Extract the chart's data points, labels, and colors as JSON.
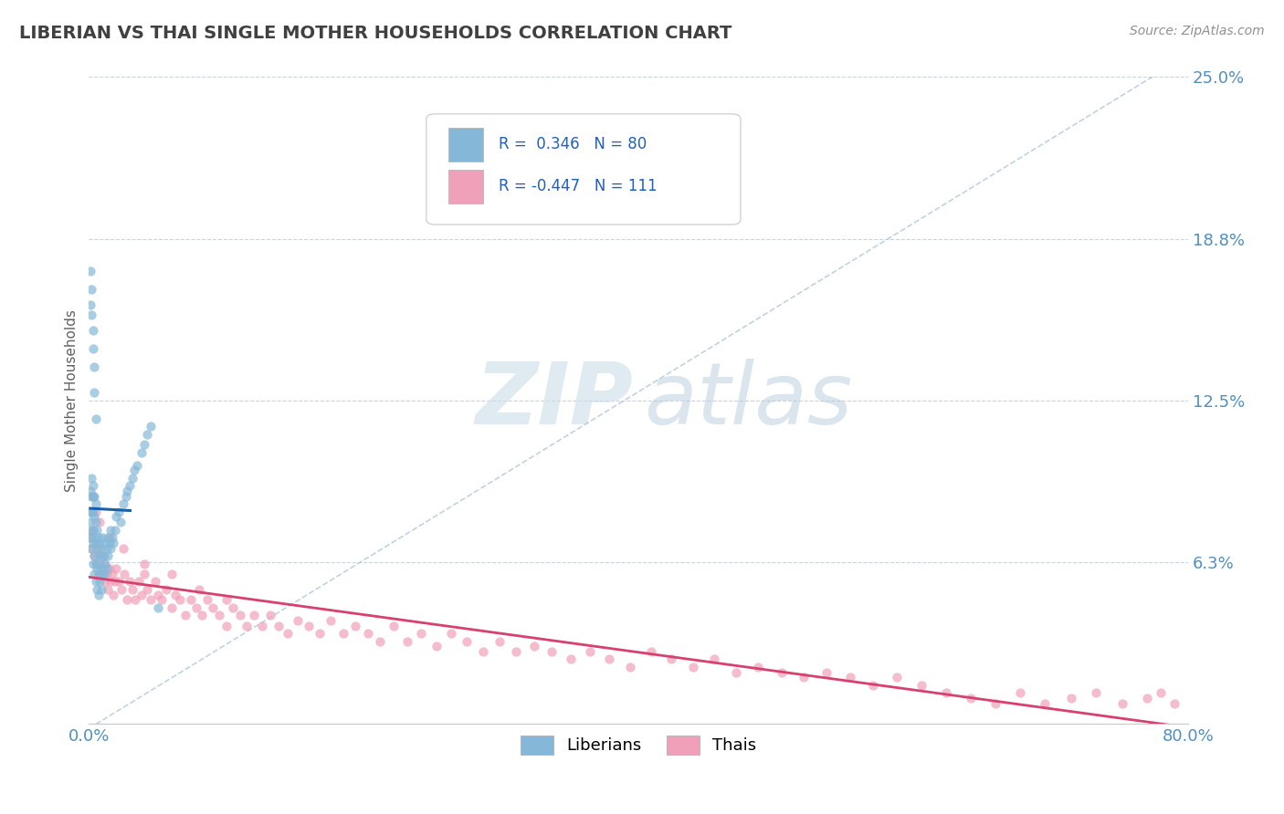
{
  "title": "LIBERIAN VS THAI SINGLE MOTHER HOUSEHOLDS CORRELATION CHART",
  "source_text": "Source: ZipAtlas.com",
  "ylabel": "Single Mother Households",
  "xlim": [
    0.0,
    0.8
  ],
  "ylim": [
    0.0,
    0.25
  ],
  "ytick_positions": [
    0.0,
    0.0625,
    0.125,
    0.1875,
    0.25
  ],
  "ytick_labels": [
    "",
    "6.3%",
    "12.5%",
    "18.8%",
    "25.0%"
  ],
  "xtick_positions": [
    0.0,
    0.8
  ],
  "xtick_labels": [
    "0.0%",
    "80.0%"
  ],
  "liberian_color": "#85b8d8",
  "thai_color": "#f0a0b8",
  "liberian_line_color": "#1a5fa8",
  "thai_line_color": "#d84070",
  "diag_line_color": "#b0c8dc",
  "liberian_R": 0.346,
  "liberian_N": 80,
  "thai_R": -0.447,
  "thai_N": 111,
  "grid_color": "#c8d4e0",
  "title_color": "#404040",
  "source_color": "#909090",
  "axis_label_color": "#606060",
  "tick_label_color": "#5090c0",
  "legend_label_1": "Liberians",
  "legend_label_2": "Thais",
  "liberian_scatter_x": [
    0.001,
    0.001,
    0.001,
    0.001,
    0.002,
    0.002,
    0.002,
    0.002,
    0.002,
    0.003,
    0.003,
    0.003,
    0.003,
    0.003,
    0.003,
    0.004,
    0.004,
    0.004,
    0.004,
    0.004,
    0.005,
    0.005,
    0.005,
    0.005,
    0.005,
    0.006,
    0.006,
    0.006,
    0.006,
    0.007,
    0.007,
    0.007,
    0.007,
    0.008,
    0.008,
    0.008,
    0.009,
    0.009,
    0.009,
    0.01,
    0.01,
    0.01,
    0.011,
    0.011,
    0.012,
    0.012,
    0.013,
    0.013,
    0.014,
    0.014,
    0.015,
    0.016,
    0.016,
    0.017,
    0.018,
    0.019,
    0.02,
    0.022,
    0.023,
    0.025,
    0.027,
    0.028,
    0.03,
    0.032,
    0.033,
    0.035,
    0.038,
    0.04,
    0.042,
    0.045,
    0.001,
    0.001,
    0.002,
    0.002,
    0.003,
    0.003,
    0.004,
    0.004,
    0.005,
    0.05
  ],
  "liberian_scatter_y": [
    0.072,
    0.078,
    0.082,
    0.09,
    0.068,
    0.075,
    0.082,
    0.088,
    0.095,
    0.062,
    0.07,
    0.075,
    0.082,
    0.088,
    0.092,
    0.058,
    0.065,
    0.072,
    0.08,
    0.088,
    0.055,
    0.062,
    0.07,
    0.078,
    0.085,
    0.052,
    0.06,
    0.068,
    0.075,
    0.05,
    0.058,
    0.065,
    0.072,
    0.055,
    0.062,
    0.07,
    0.052,
    0.06,
    0.068,
    0.058,
    0.065,
    0.072,
    0.058,
    0.065,
    0.062,
    0.07,
    0.06,
    0.068,
    0.065,
    0.072,
    0.07,
    0.068,
    0.075,
    0.072,
    0.07,
    0.075,
    0.08,
    0.082,
    0.078,
    0.085,
    0.088,
    0.09,
    0.092,
    0.095,
    0.098,
    0.1,
    0.105,
    0.108,
    0.112,
    0.115,
    0.162,
    0.175,
    0.158,
    0.168,
    0.152,
    0.145,
    0.138,
    0.128,
    0.118,
    0.045
  ],
  "thai_scatter_x": [
    0.001,
    0.002,
    0.003,
    0.004,
    0.005,
    0.006,
    0.007,
    0.008,
    0.009,
    0.01,
    0.011,
    0.012,
    0.013,
    0.014,
    0.015,
    0.016,
    0.017,
    0.018,
    0.019,
    0.02,
    0.022,
    0.024,
    0.026,
    0.028,
    0.03,
    0.032,
    0.034,
    0.036,
    0.038,
    0.04,
    0.042,
    0.045,
    0.048,
    0.05,
    0.053,
    0.056,
    0.06,
    0.063,
    0.066,
    0.07,
    0.074,
    0.078,
    0.082,
    0.086,
    0.09,
    0.095,
    0.1,
    0.105,
    0.11,
    0.115,
    0.12,
    0.126,
    0.132,
    0.138,
    0.145,
    0.152,
    0.16,
    0.168,
    0.176,
    0.185,
    0.194,
    0.203,
    0.212,
    0.222,
    0.232,
    0.242,
    0.253,
    0.264,
    0.275,
    0.287,
    0.299,
    0.311,
    0.324,
    0.337,
    0.351,
    0.365,
    0.379,
    0.394,
    0.409,
    0.424,
    0.44,
    0.455,
    0.471,
    0.487,
    0.504,
    0.52,
    0.537,
    0.554,
    0.571,
    0.588,
    0.606,
    0.624,
    0.642,
    0.66,
    0.678,
    0.696,
    0.715,
    0.733,
    0.752,
    0.77,
    0.78,
    0.79,
    0.003,
    0.005,
    0.008,
    0.015,
    0.025,
    0.04,
    0.06,
    0.08,
    0.1
  ],
  "thai_scatter_y": [
    0.072,
    0.068,
    0.075,
    0.065,
    0.07,
    0.062,
    0.068,
    0.058,
    0.065,
    0.06,
    0.062,
    0.055,
    0.058,
    0.052,
    0.06,
    0.055,
    0.058,
    0.05,
    0.055,
    0.06,
    0.055,
    0.052,
    0.058,
    0.048,
    0.055,
    0.052,
    0.048,
    0.055,
    0.05,
    0.058,
    0.052,
    0.048,
    0.055,
    0.05,
    0.048,
    0.052,
    0.045,
    0.05,
    0.048,
    0.042,
    0.048,
    0.045,
    0.042,
    0.048,
    0.045,
    0.042,
    0.038,
    0.045,
    0.042,
    0.038,
    0.042,
    0.038,
    0.042,
    0.038,
    0.035,
    0.04,
    0.038,
    0.035,
    0.04,
    0.035,
    0.038,
    0.035,
    0.032,
    0.038,
    0.032,
    0.035,
    0.03,
    0.035,
    0.032,
    0.028,
    0.032,
    0.028,
    0.03,
    0.028,
    0.025,
    0.028,
    0.025,
    0.022,
    0.028,
    0.025,
    0.022,
    0.025,
    0.02,
    0.022,
    0.02,
    0.018,
    0.02,
    0.018,
    0.015,
    0.018,
    0.015,
    0.012,
    0.01,
    0.008,
    0.012,
    0.008,
    0.01,
    0.012,
    0.008,
    0.01,
    0.012,
    0.008,
    0.088,
    0.082,
    0.078,
    0.072,
    0.068,
    0.062,
    0.058,
    0.052,
    0.048
  ]
}
